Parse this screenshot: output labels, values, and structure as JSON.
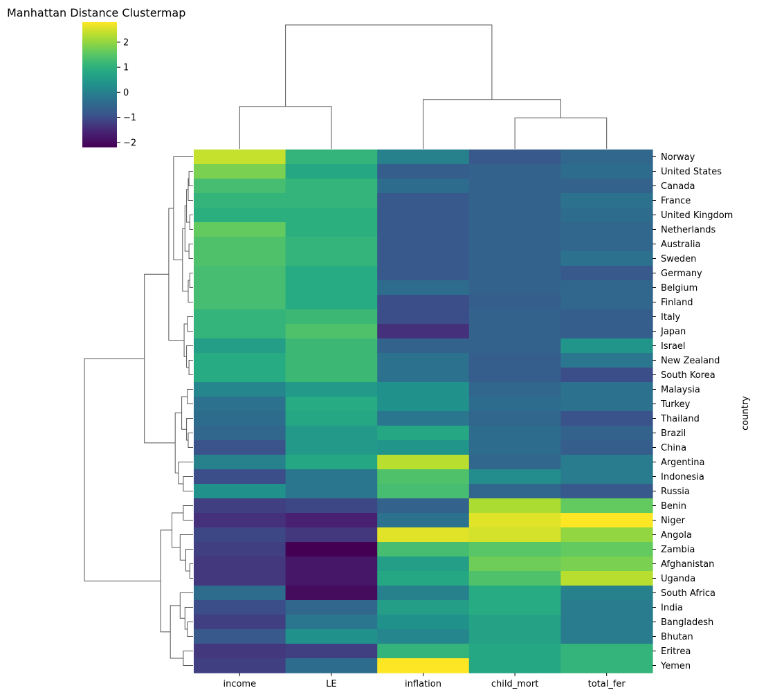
{
  "chart_data": {
    "type": "heatmap",
    "title": "Manhattan Distance Clustermap",
    "ylabel": "country",
    "columns": [
      "income",
      "LE",
      "inflation",
      "child_mort",
      "total_fer"
    ],
    "rows": [
      "Norway",
      "United States",
      "Canada",
      "France",
      "United Kingdom",
      "Netherlands",
      "Australia",
      "Sweden",
      "Germany",
      "Belgium",
      "Finland",
      "Italy",
      "Japan",
      "Israel",
      "New Zealand",
      "South Korea",
      "Malaysia",
      "Turkey",
      "Thailand",
      "Brazil",
      "China",
      "Argentina",
      "Indonesia",
      "Russia",
      "Benin",
      "Niger",
      "Angola",
      "Zambia",
      "Afghanistan",
      "Uganda",
      "South Africa",
      "India",
      "Bangladesh",
      "Bhutan",
      "Eritrea",
      "Yemen"
    ],
    "values": [
      [
        2.4,
        1.1,
        0.0,
        -0.8,
        -0.5
      ],
      [
        1.8,
        0.8,
        -0.7,
        -0.6,
        -0.4
      ],
      [
        1.3,
        1.1,
        -0.4,
        -0.6,
        -0.6
      ],
      [
        1.1,
        1.1,
        -0.8,
        -0.6,
        -0.3
      ],
      [
        1.0,
        1.0,
        -0.8,
        -0.6,
        -0.4
      ],
      [
        1.6,
        1.0,
        -0.8,
        -0.6,
        -0.5
      ],
      [
        1.4,
        1.1,
        -0.8,
        -0.6,
        -0.5
      ],
      [
        1.4,
        1.1,
        -0.8,
        -0.6,
        -0.3
      ],
      [
        1.3,
        0.9,
        -0.8,
        -0.6,
        -0.8
      ],
      [
        1.3,
        0.9,
        -0.4,
        -0.6,
        -0.5
      ],
      [
        1.3,
        0.9,
        -1.0,
        -0.7,
        -0.5
      ],
      [
        1.1,
        1.2,
        -1.0,
        -0.6,
        -0.7
      ],
      [
        1.1,
        1.4,
        -1.4,
        -0.6,
        -0.7
      ],
      [
        0.6,
        1.2,
        -0.6,
        -0.6,
        0.4
      ],
      [
        0.9,
        1.2,
        -0.3,
        -0.7,
        -0.2
      ],
      [
        0.9,
        1.2,
        -0.3,
        -0.7,
        -1.0
      ],
      [
        0.1,
        0.5,
        0.3,
        -0.5,
        -0.3
      ],
      [
        -0.3,
        0.9,
        0.3,
        -0.4,
        -0.3
      ],
      [
        -0.4,
        0.8,
        -0.2,
        -0.5,
        -0.9
      ],
      [
        -0.5,
        0.5,
        0.8,
        -0.4,
        -0.6
      ],
      [
        -0.9,
        0.5,
        0.4,
        -0.4,
        -0.7
      ],
      [
        0.0,
        0.8,
        2.3,
        -0.5,
        -0.1
      ],
      [
        -1.0,
        -0.2,
        1.4,
        0.2,
        -0.1
      ],
      [
        0.3,
        -0.2,
        1.3,
        -0.5,
        -0.8
      ],
      [
        -1.2,
        -1.1,
        -0.6,
        2.2,
        1.6
      ],
      [
        -1.4,
        -1.6,
        -0.3,
        2.6,
        2.9
      ],
      [
        -1.1,
        -1.3,
        2.6,
        2.5,
        2.0
      ],
      [
        -1.2,
        -2.2,
        1.3,
        1.5,
        1.6
      ],
      [
        -1.3,
        -1.8,
        0.6,
        1.7,
        1.8
      ],
      [
        -1.3,
        -1.8,
        0.8,
        1.4,
        2.3
      ],
      [
        -0.4,
        -2.0,
        0.0,
        0.9,
        0.0
      ],
      [
        -1.0,
        -0.5,
        0.6,
        0.9,
        -0.1
      ],
      [
        -1.2,
        -0.2,
        0.3,
        0.7,
        -0.1
      ],
      [
        -0.8,
        0.3,
        0.1,
        0.7,
        -0.1
      ],
      [
        -1.3,
        -1.2,
        1.1,
        0.8,
        1.1
      ],
      [
        -1.2,
        -0.4,
        2.8,
        0.8,
        1.1
      ]
    ],
    "colormap": "viridis",
    "vmin": -2.2,
    "vmax": 2.8,
    "colorbar_ticks": [
      "2",
      "1",
      "0",
      "−1",
      "−2"
    ],
    "colorbar_tick_values": [
      2,
      1,
      0,
      -1,
      -2
    ],
    "row_dendrogram": {
      "heights": [
        0.25,
        0.2,
        0.35,
        0.3,
        0.5,
        0.7,
        1.0,
        1.6,
        2.6,
        3.1,
        4.5,
        6.7
      ],
      "clusters": [
        [
          0,
          15
        ],
        [
          16,
          23
        ],
        [
          24,
          29
        ],
        [
          30,
          35
        ]
      ]
    },
    "col_dendrogram": {
      "heights": [
        2.7,
        3.7,
        4.3,
        10.8
      ]
    }
  }
}
